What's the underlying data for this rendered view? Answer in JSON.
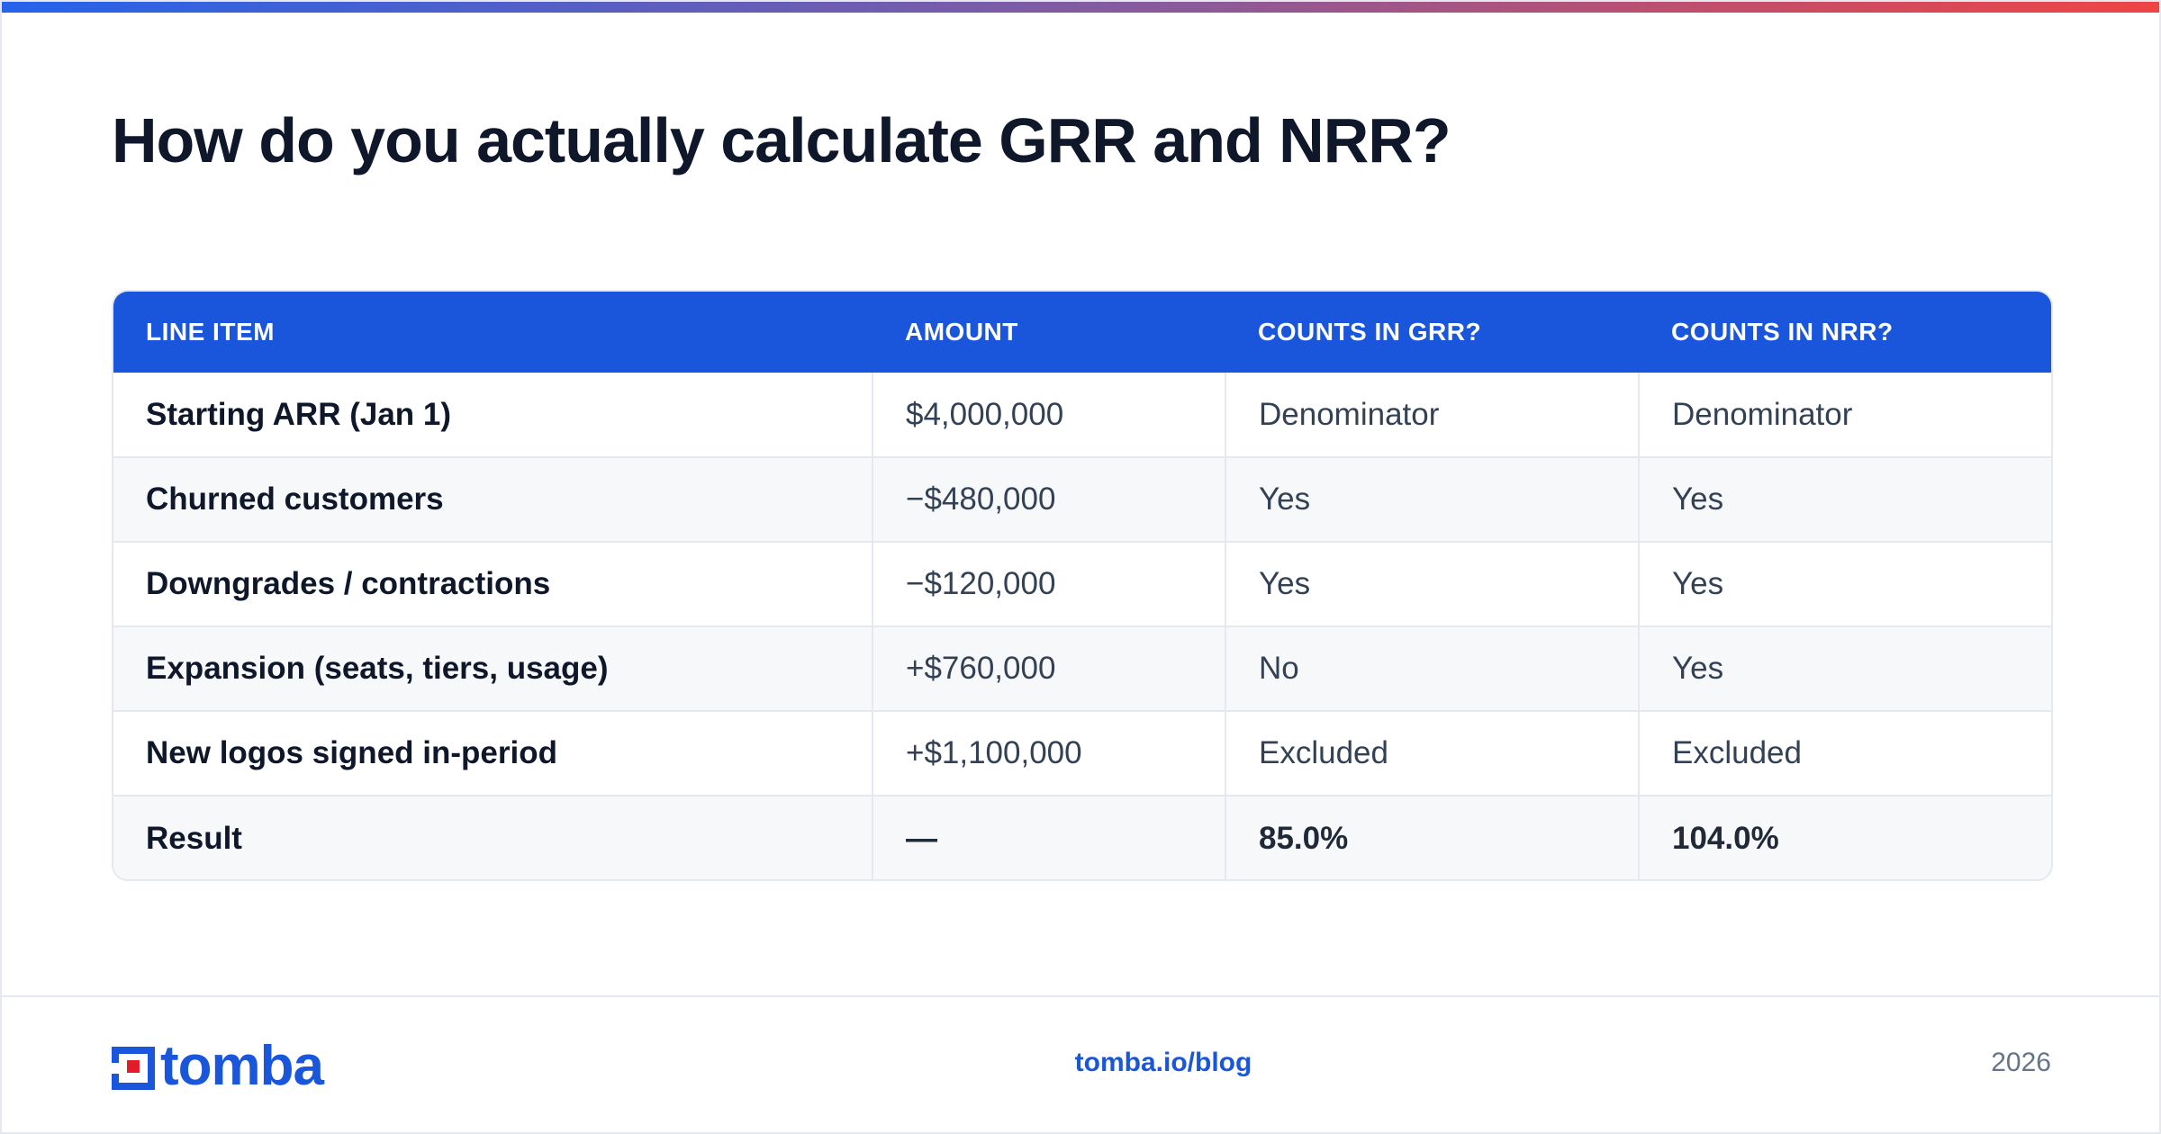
{
  "title": "How do you actually calculate GRR and NRR?",
  "colors": {
    "accent": "#1a56db",
    "gradient_start": "#2563eb",
    "gradient_end": "#ef4444",
    "logo_red": "#e11d2a"
  },
  "table": {
    "headers": [
      "LINE ITEM",
      "AMOUNT",
      "COUNTS IN GRR?",
      "COUNTS IN NRR?"
    ],
    "rows": [
      [
        "Starting ARR (Jan 1)",
        "$4,000,000",
        "Denominator",
        "Denominator"
      ],
      [
        "Churned customers",
        "−$480,000",
        "Yes",
        "Yes"
      ],
      [
        "Downgrades / contractions",
        "−$120,000",
        "Yes",
        "Yes"
      ],
      [
        "Expansion (seats, tiers, usage)",
        "+$760,000",
        "No",
        "Yes"
      ],
      [
        "New logos signed in-period",
        "+$1,100,000",
        "Excluded",
        "Excluded"
      ],
      [
        "Result",
        "—",
        "85.0%",
        "104.0%"
      ]
    ]
  },
  "footer": {
    "logo_text": "tomba",
    "link": "tomba.io/blog",
    "year": "2026"
  }
}
